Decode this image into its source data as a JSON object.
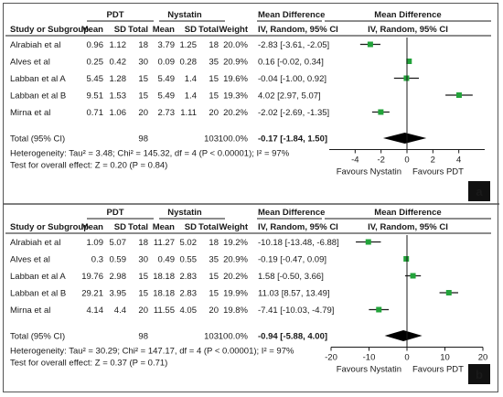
{
  "chart_data": [
    {
      "type": "forest",
      "group_labels": {
        "experimental": "PDT",
        "control": "Nystatin"
      },
      "columns": [
        "Study or Subgroup",
        "Mean",
        "SD",
        "Total",
        "Mean",
        "SD",
        "Total",
        "Weight",
        "Mean Difference"
      ],
      "column_sub": "IV, Random, 95% CI",
      "plot_header": "Mean Difference",
      "plot_sub": "IV, Random, 95% CI",
      "studies": [
        {
          "name": "Alrabiah et al",
          "e_mean": "0.96",
          "e_sd": "1.12",
          "e_total": "18",
          "c_mean": "3.79",
          "c_sd": "1.25",
          "c_total": "18",
          "weight": "20.0%",
          "ci_text": "-2.83 [-3.61, -2.05]",
          "md": -2.83,
          "lo": -3.61,
          "hi": -2.05
        },
        {
          "name": "Alves et al",
          "e_mean": "0.25",
          "e_sd": "0.42",
          "e_total": "30",
          "c_mean": "0.09",
          "c_sd": "0.28",
          "c_total": "35",
          "weight": "20.9%",
          "ci_text": "0.16 [-0.02, 0.34]",
          "md": 0.16,
          "lo": -0.02,
          "hi": 0.34
        },
        {
          "name": "Labban et al A",
          "e_mean": "5.45",
          "e_sd": "1.28",
          "e_total": "15",
          "c_mean": "5.49",
          "c_sd": "1.4",
          "c_total": "15",
          "weight": "19.6%",
          "ci_text": "-0.04 [-1.00, 0.92]",
          "md": -0.04,
          "lo": -1.0,
          "hi": 0.92
        },
        {
          "name": "Labban et al B",
          "e_mean": "9.51",
          "e_sd": "1.53",
          "e_total": "15",
          "c_mean": "5.49",
          "c_sd": "1.4",
          "c_total": "15",
          "weight": "19.3%",
          "ci_text": "4.02 [2.97, 5.07]",
          "md": 4.02,
          "lo": 2.97,
          "hi": 5.07
        },
        {
          "name": "Mirna et al",
          "e_mean": "0.71",
          "e_sd": "1.06",
          "e_total": "20",
          "c_mean": "2.73",
          "c_sd": "1.11",
          "c_total": "20",
          "weight": "20.2%",
          "ci_text": "-2.02 [-2.69, -1.35]",
          "md": -2.02,
          "lo": -2.69,
          "hi": -1.35
        }
      ],
      "total": {
        "label": "Total (95% CI)",
        "e_total": "98",
        "c_total": "103",
        "weight": "100.0%",
        "ci_text": "-0.17 [-1.84, 1.50]",
        "md": -0.17,
        "lo": -1.84,
        "hi": 1.5
      },
      "heterogeneity": "Heterogeneity: Tau² = 3.48; Chi² = 145.32, df = 4 (P < 0.00001); I² = 97%",
      "overall_effect": "Test for overall effect: Z = 0.20 (P = 0.84)",
      "xlim": [
        -6,
        6
      ],
      "ticks": [
        -4,
        -2,
        0,
        2,
        4
      ],
      "favours_left": "Favours Nystatin",
      "favours_right": "Favours PDT",
      "panel_label": "a"
    },
    {
      "type": "forest",
      "group_labels": {
        "experimental": "PDT",
        "control": "Nystatin"
      },
      "columns": [
        "Study or Subgroup",
        "Mean",
        "SD",
        "Total",
        "Mean",
        "SD",
        "Total",
        "Weight",
        "Mean Difference"
      ],
      "column_sub": "IV, Random, 95% CI",
      "plot_header": "Mean Difference",
      "plot_sub": "IV, Random, 95% CI",
      "studies": [
        {
          "name": "Alrabiah et al",
          "e_mean": "1.09",
          "e_sd": "5.07",
          "e_total": "18",
          "c_mean": "11.27",
          "c_sd": "5.02",
          "c_total": "18",
          "weight": "19.2%",
          "ci_text": "-10.18 [-13.48, -6.88]",
          "md": -10.18,
          "lo": -13.48,
          "hi": -6.88
        },
        {
          "name": "Alves et al",
          "e_mean": "0.3",
          "e_sd": "0.59",
          "e_total": "30",
          "c_mean": "0.49",
          "c_sd": "0.55",
          "c_total": "35",
          "weight": "20.9%",
          "ci_text": "-0.19 [-0.47, 0.09]",
          "md": -0.19,
          "lo": -0.47,
          "hi": 0.09
        },
        {
          "name": "Labban et al A",
          "e_mean": "19.76",
          "e_sd": "2.98",
          "e_total": "15",
          "c_mean": "18.18",
          "c_sd": "2.83",
          "c_total": "15",
          "weight": "20.2%",
          "ci_text": "1.58 [-0.50, 3.66]",
          "md": 1.58,
          "lo": -0.5,
          "hi": 3.66
        },
        {
          "name": "Labban et al B",
          "e_mean": "29.21",
          "e_sd": "3.95",
          "e_total": "15",
          "c_mean": "18.18",
          "c_sd": "2.83",
          "c_total": "15",
          "weight": "19.9%",
          "ci_text": "11.03 [8.57, 13.49]",
          "md": 11.03,
          "lo": 8.57,
          "hi": 13.49
        },
        {
          "name": "Mirna et al",
          "e_mean": "4.14",
          "e_sd": "4.4",
          "e_total": "20",
          "c_mean": "11.55",
          "c_sd": "4.05",
          "c_total": "20",
          "weight": "19.8%",
          "ci_text": "-7.41 [-10.03, -4.79]",
          "md": -7.41,
          "lo": -10.03,
          "hi": -4.79
        }
      ],
      "total": {
        "label": "Total (95% CI)",
        "e_total": "98",
        "c_total": "103",
        "weight": "100.0%",
        "ci_text": "-0.94 [-5.88, 4.00]",
        "md": -0.94,
        "lo": -5.88,
        "hi": 4.0
      },
      "heterogeneity": "Heterogeneity: Tau² = 30.29; Chi² = 147.17, df = 4 (P < 0.00001); I² = 97%",
      "overall_effect": "Test for overall effect: Z = 0.37 (P = 0.71)",
      "xlim": [
        -20,
        20
      ],
      "ticks": [
        -20,
        -10,
        0,
        10,
        20
      ],
      "favours_left": "Favours Nystatin",
      "favours_right": "Favours PDT",
      "panel_label": "b"
    }
  ],
  "colors": {
    "marker": "#22a33a",
    "line": "#1a1a1a",
    "label_bg": "#111111",
    "label_fg": "#ffffff"
  }
}
